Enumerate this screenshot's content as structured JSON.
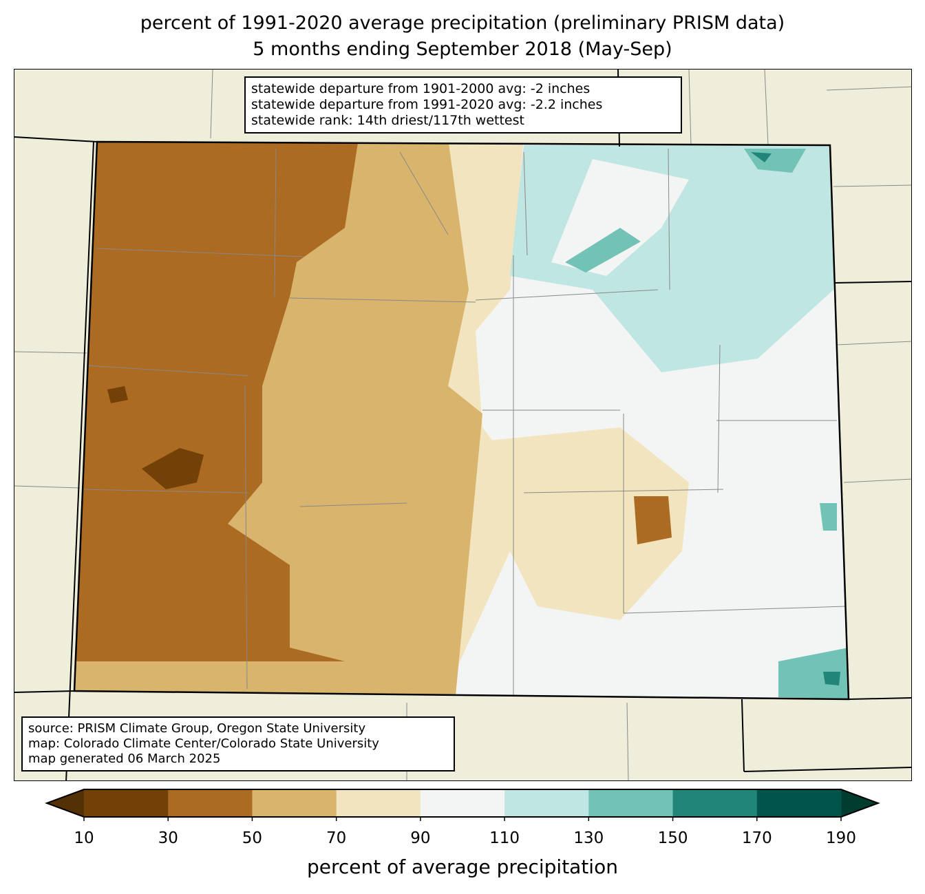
{
  "title": {
    "line1": "percent of 1991-2020 average precipitation (preliminary PRISM data)",
    "line2": "5 months ending September 2018 (May-Sep)"
  },
  "stats": {
    "departure_1901_2000": "statewide departure from 1901-2000 avg: -2 inches",
    "departure_1991_2020": "statewide departure from 1991-2020 avg: -2.2 inches",
    "rank": "statewide rank: 14th driest/117th wettest"
  },
  "source": {
    "line1": "source: PRISM Climate Group, Oregon State University",
    "line2": "map: Colorado Climate Center/Colorado State University",
    "line3": "map generated 06 March 2025"
  },
  "colorbar": {
    "label": "percent of average precipitation",
    "ticks": [
      "10",
      "30",
      "50",
      "70",
      "90",
      "110",
      "130",
      "150",
      "170",
      "190"
    ],
    "under_color": "#543005",
    "over_color": "#003c30",
    "colors": [
      "#734007",
      "#ac6b22",
      "#d9b46c",
      "#f2e4be",
      "#f3f5f4",
      "#bfe6e2",
      "#72c3b6",
      "#218679",
      "#01544b"
    ]
  }
}
